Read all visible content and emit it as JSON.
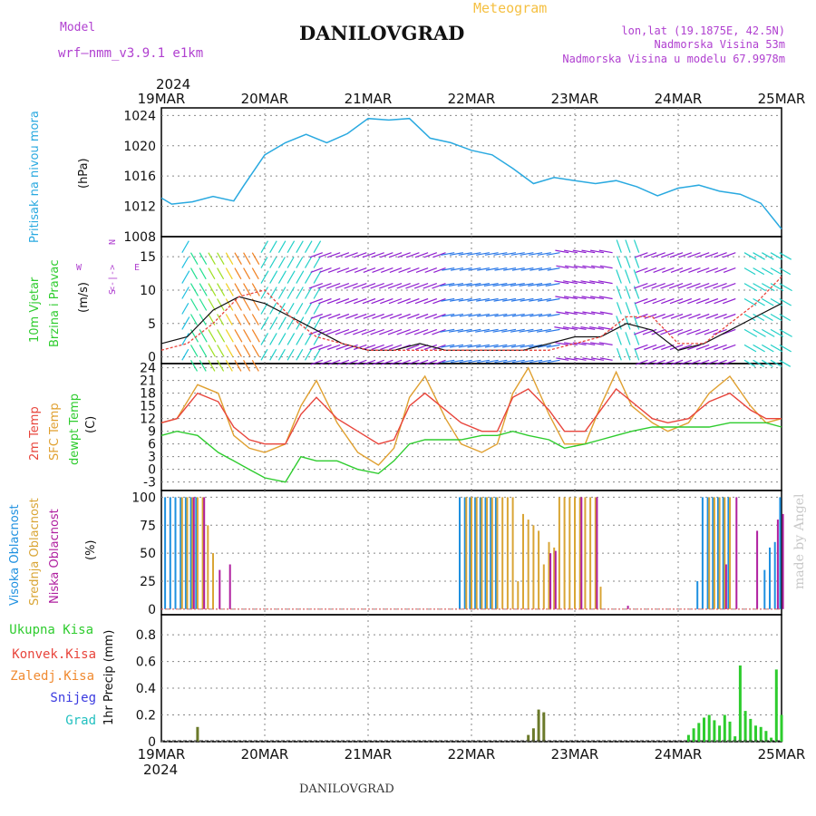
{
  "header": {
    "model_label": "Model",
    "model_name": "wrf—nmm_v3.9.1  e1km",
    "meteogram_label": "Meteogram",
    "station": "DANILOVGRAD",
    "lonlat": "lon,lat (19.1875E, 42.5N)",
    "elevation": "Nadmorska Visina 53m",
    "model_elevation": "Nadmorska Visina u modelu 67.9978m",
    "year": "2024",
    "footer_station": "DANILOVGRAD",
    "watermark": "made by Angel"
  },
  "colors": {
    "pressure": "#29a9e0",
    "temp2m": "#e8453c",
    "sfc": "#e0a030",
    "dewpt": "#2ecc2e",
    "high_cloud": "#1e90e0",
    "mid_cloud": "#d9a535",
    "low_cloud": "#b020a0",
    "precip": "#2ecc2e",
    "grid": "#888888",
    "purple_text": "#b040d0"
  },
  "x_axis": {
    "dates": [
      "19MAR",
      "20MAR",
      "21MAR",
      "22MAR",
      "23MAR",
      "24MAR",
      "25MAR"
    ],
    "year": "2024"
  },
  "panels": {
    "pressure": {
      "label": "Pritisak na nivou mora",
      "unit": "(hPa)",
      "ticks": [
        "1008",
        "1012",
        "1016",
        "1020",
        "1024"
      ]
    },
    "wind": {
      "label1": "10m Vjetar",
      "label2": "Brzina i Pravac",
      "unit": "(m/s)",
      "ticks": [
        "0",
        "5",
        "10",
        "15"
      ],
      "compass": {
        "n": "N",
        "s": "S",
        "e": "E",
        "w": "W",
        "arrows": "<-|->"
      }
    },
    "temp": {
      "label1": "2m Temp",
      "label2": "SFC Temp",
      "label3": "dewpt Temp",
      "unit": "(C)",
      "ticks": [
        "-3",
        "0",
        "3",
        "6",
        "9",
        "12",
        "15",
        "18",
        "21",
        "24"
      ]
    },
    "cloud": {
      "label1": "Visoka Oblacnost",
      "label2": "Srednja Oblacnost",
      "label3": "Niska Oblacnost",
      "unit": "(%)",
      "ticks": [
        "0",
        "25",
        "50",
        "75",
        "100"
      ]
    },
    "precip": {
      "unit": "1hr Precip (mm)",
      "ticks": [
        "0",
        "0.2",
        "0.4",
        "0.6",
        "0.8"
      ],
      "legend": [
        {
          "label": "Ukupna Kisa",
          "color": "#2ecc2e"
        },
        {
          "label": "Konvek.Kisa",
          "color": "#e8453c"
        },
        {
          "label": "Zaledj.Kisa",
          "color": "#f08a30"
        },
        {
          "label": "Snijeg",
          "color": "#3a3ae0"
        },
        {
          "label": "Grad",
          "color": "#22c0c0"
        }
      ]
    }
  },
  "chart_data": [
    {
      "type": "line",
      "name": "pressure",
      "x_days": [
        0,
        0.1,
        0.3,
        0.5,
        0.7,
        0.8,
        1.0,
        1.2,
        1.4,
        1.6,
        1.8,
        2.0,
        2.2,
        2.4,
        2.6,
        2.8,
        3.0,
        3.2,
        3.4,
        3.6,
        3.8,
        4.0,
        4.2,
        4.4,
        4.6,
        4.8,
        5.0,
        5.2,
        5.4,
        5.6,
        5.8,
        6.0
      ],
      "series": [
        {
          "values": [
            1013.1,
            1012.3,
            1012.6,
            1013.3,
            1012.7,
            1014.8,
            1018.8,
            1020.4,
            1021.5,
            1020.4,
            1021.6,
            1023.6,
            1023.4,
            1023.6,
            1021.0,
            1020.4,
            1019.4,
            1018.8,
            1017.0,
            1015.0,
            1015.8,
            1015.4,
            1015.0,
            1015.4,
            1014.6,
            1013.4,
            1014.4,
            1014.8,
            1014.0,
            1013.6,
            1012.4,
            1009.0
          ]
        }
      ],
      "ylim": [
        1008,
        1025
      ]
    },
    {
      "type": "line",
      "name": "wind",
      "x_days": [
        0,
        0.25,
        0.5,
        0.75,
        1.0,
        1.25,
        1.5,
        1.75,
        2.0,
        2.25,
        2.5,
        2.75,
        3.0,
        3.25,
        3.5,
        3.75,
        4.0,
        4.25,
        4.5,
        4.75,
        5.0,
        5.25,
        5.5,
        5.75,
        6.0
      ],
      "series": [
        {
          "values": [
            2,
            3,
            7,
            9,
            8,
            6,
            4,
            2,
            1,
            1,
            2,
            1,
            1,
            1,
            1,
            2,
            3,
            3,
            5,
            4,
            1,
            2,
            4,
            6,
            8
          ]
        },
        {
          "values": [
            1,
            2,
            5,
            9,
            10,
            6,
            3,
            2,
            1,
            1,
            1,
            1,
            1,
            1,
            1,
            1,
            2,
            3,
            6,
            6,
            2,
            2,
            5,
            8,
            12
          ]
        }
      ],
      "ylim": [
        -1,
        18
      ]
    },
    {
      "type": "line",
      "name": "temperature",
      "x_days": [
        0,
        0.15,
        0.35,
        0.55,
        0.7,
        0.85,
        1.0,
        1.2,
        1.35,
        1.5,
        1.7,
        1.9,
        2.1,
        2.25,
        2.4,
        2.55,
        2.75,
        2.9,
        3.1,
        3.25,
        3.4,
        3.55,
        3.75,
        3.9,
        4.1,
        4.25,
        4.4,
        4.55,
        4.75,
        4.9,
        5.1,
        5.3,
        5.5,
        5.7,
        5.85,
        6.0
      ],
      "series": [
        {
          "values": [
            11,
            12,
            18,
            16,
            10,
            7,
            6,
            6,
            13,
            17,
            12,
            9,
            6,
            7,
            15,
            18,
            14,
            11,
            9,
            9,
            17,
            19,
            14,
            9,
            9,
            14,
            19,
            16,
            12,
            11,
            12,
            16,
            18,
            14,
            12,
            12
          ]
        },
        {
          "values": [
            11,
            12,
            20,
            18,
            8,
            5,
            4,
            6,
            15,
            21,
            11,
            4,
            1,
            5,
            17,
            22,
            12,
            6,
            4,
            6,
            18,
            24,
            13,
            6,
            6,
            15,
            23,
            15,
            11,
            9,
            11,
            18,
            22,
            15,
            11,
            12
          ]
        },
        {
          "values": [
            8,
            9,
            8,
            4,
            2,
            0,
            -2,
            -3,
            3,
            2,
            2,
            0,
            -1,
            2,
            6,
            7,
            7,
            7,
            8,
            8,
            9,
            8,
            7,
            5,
            6,
            7,
            8,
            9,
            10,
            10,
            10,
            10,
            11,
            11,
            11,
            10
          ]
        }
      ],
      "ylim": [
        -5,
        25
      ]
    },
    {
      "type": "bar",
      "name": "cloud_cover",
      "series": [
        {
          "name": "Visoka Oblacnost",
          "x_days": [
            0.05,
            0.1,
            0.15,
            0.2,
            0.25,
            0.3,
            0.35,
            2.9,
            2.95,
            3.0,
            3.05,
            3.1,
            3.15,
            3.2,
            3.25,
            5.2,
            5.25,
            5.3,
            5.35,
            5.4,
            5.45,
            5.5,
            5.85,
            5.9,
            5.95,
            6.0
          ],
          "values": [
            100,
            100,
            100,
            100,
            100,
            100,
            100,
            100,
            100,
            100,
            100,
            100,
            100,
            100,
            100,
            25,
            100,
            100,
            100,
            100,
            100,
            100,
            35,
            55,
            60,
            100
          ]
        },
        {
          "name": "Srednja Oblacnost",
          "x_days": [
            0.2,
            0.25,
            0.3,
            0.35,
            0.4,
            0.45,
            0.5,
            2.95,
            3.0,
            3.05,
            3.1,
            3.15,
            3.2,
            3.25,
            3.3,
            3.35,
            3.4,
            3.45,
            3.5,
            3.55,
            3.6,
            3.65,
            3.7,
            3.75,
            3.8,
            3.85,
            3.9,
            3.95,
            4.0,
            4.05,
            4.1,
            4.15,
            4.2,
            4.25,
            5.3,
            5.35,
            5.4,
            5.45,
            5.5
          ],
          "values": [
            100,
            100,
            100,
            100,
            100,
            75,
            50,
            100,
            100,
            100,
            100,
            100,
            100,
            100,
            100,
            100,
            100,
            25,
            85,
            80,
            75,
            70,
            40,
            60,
            55,
            100,
            100,
            100,
            100,
            100,
            100,
            100,
            100,
            20,
            100,
            100,
            100,
            100,
            100
          ]
        },
        {
          "name": "Niska Oblacnost",
          "x_days": [
            0.3,
            0.4,
            0.55,
            0.65,
            3.75,
            3.8,
            4.05,
            4.2,
            4.5,
            5.45,
            5.55,
            5.75,
            5.95,
            6.0
          ],
          "values": [
            100,
            100,
            35,
            40,
            50,
            52,
            100,
            100,
            3,
            40,
            100,
            70,
            80,
            85
          ]
        }
      ],
      "ylim": [
        0,
        100
      ]
    },
    {
      "type": "bar",
      "name": "precipitation",
      "series": [
        {
          "name": "Ukupna Kisa",
          "x_days": [
            0.35,
            3.55,
            3.6,
            3.65,
            3.7,
            5.1,
            5.15,
            5.2,
            5.25,
            5.3,
            5.35,
            5.4,
            5.45,
            5.5,
            5.55,
            5.6,
            5.65,
            5.7,
            5.75,
            5.8,
            5.85,
            5.9,
            5.95,
            6.0
          ],
          "values": [
            0.11,
            0.05,
            0.1,
            0.24,
            0.22,
            0.05,
            0.1,
            0.14,
            0.18,
            0.2,
            0.16,
            0.12,
            0.2,
            0.15,
            0.04,
            0.57,
            0.23,
            0.17,
            0.12,
            0.11,
            0.08,
            0.03,
            0.54,
            0.2
          ]
        }
      ],
      "ylim": [
        0,
        0.95
      ]
    }
  ]
}
